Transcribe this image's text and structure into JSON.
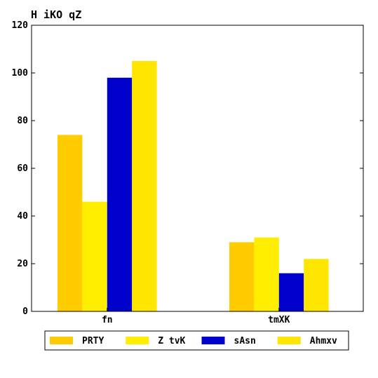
{
  "chart_data": {
    "type": "bar",
    "title": "H iKO   qZ",
    "xlabel": "",
    "ylabel": "",
    "categories": [
      "fn",
      "tmXK"
    ],
    "series": [
      {
        "name": "PRTY",
        "values": [
          74,
          29
        ],
        "color": "#ffcc00"
      },
      {
        "name": "Z tvK",
        "values": [
          46,
          31
        ],
        "color": "#ffee00"
      },
      {
        "name": "sAsn",
        "values": [
          98,
          16
        ],
        "color": "#0000cc"
      },
      {
        "name": "Ahmxv",
        "values": [
          105,
          22
        ],
        "color": "#ffe600"
      }
    ],
    "ylim": [
      0,
      120
    ],
    "yticks": [
      0,
      20,
      40,
      60,
      80,
      100,
      120
    ],
    "grid": false,
    "legend": "bottom-center"
  }
}
